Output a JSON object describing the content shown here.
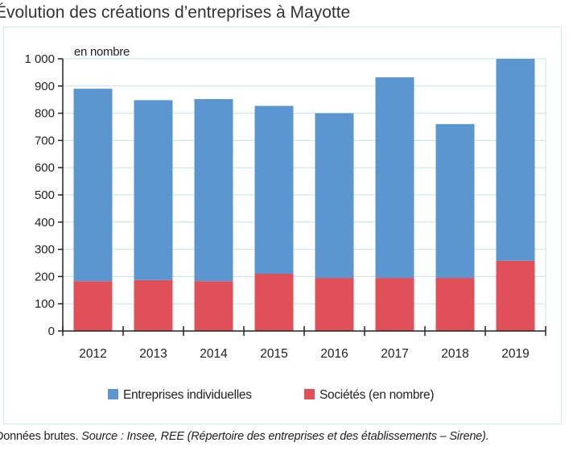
{
  "title": "Évolution des créations d’entreprises à Mayotte",
  "source_lead": "Données brutes.",
  "source_rest": "Source : Insee, REE (Répertoire des entreprises et des établissements – Sirene).",
  "chart_data": {
    "type": "bar",
    "stacked": true,
    "unit_label": "en nombre",
    "categories": [
      "2012",
      "2013",
      "2014",
      "2015",
      "2016",
      "2017",
      "2018",
      "2019"
    ],
    "series": [
      {
        "name": "Sociétés (en nombre)",
        "color": "#e05058",
        "values": [
          183,
          187,
          183,
          210,
          195,
          195,
          195,
          258
        ]
      },
      {
        "name": "Entreprises individuelles",
        "color": "#5b96d0",
        "values": [
          707,
          661,
          669,
          617,
          605,
          737,
          565,
          742
        ]
      }
    ],
    "y_ticks": [
      "0",
      "100",
      "200",
      "300",
      "400",
      "500",
      "600",
      "700",
      "800",
      "900",
      "1 000"
    ],
    "ylim": [
      0,
      1000
    ],
    "grid": true,
    "legend_position": "bottom",
    "legend_order": [
      1,
      0
    ]
  }
}
